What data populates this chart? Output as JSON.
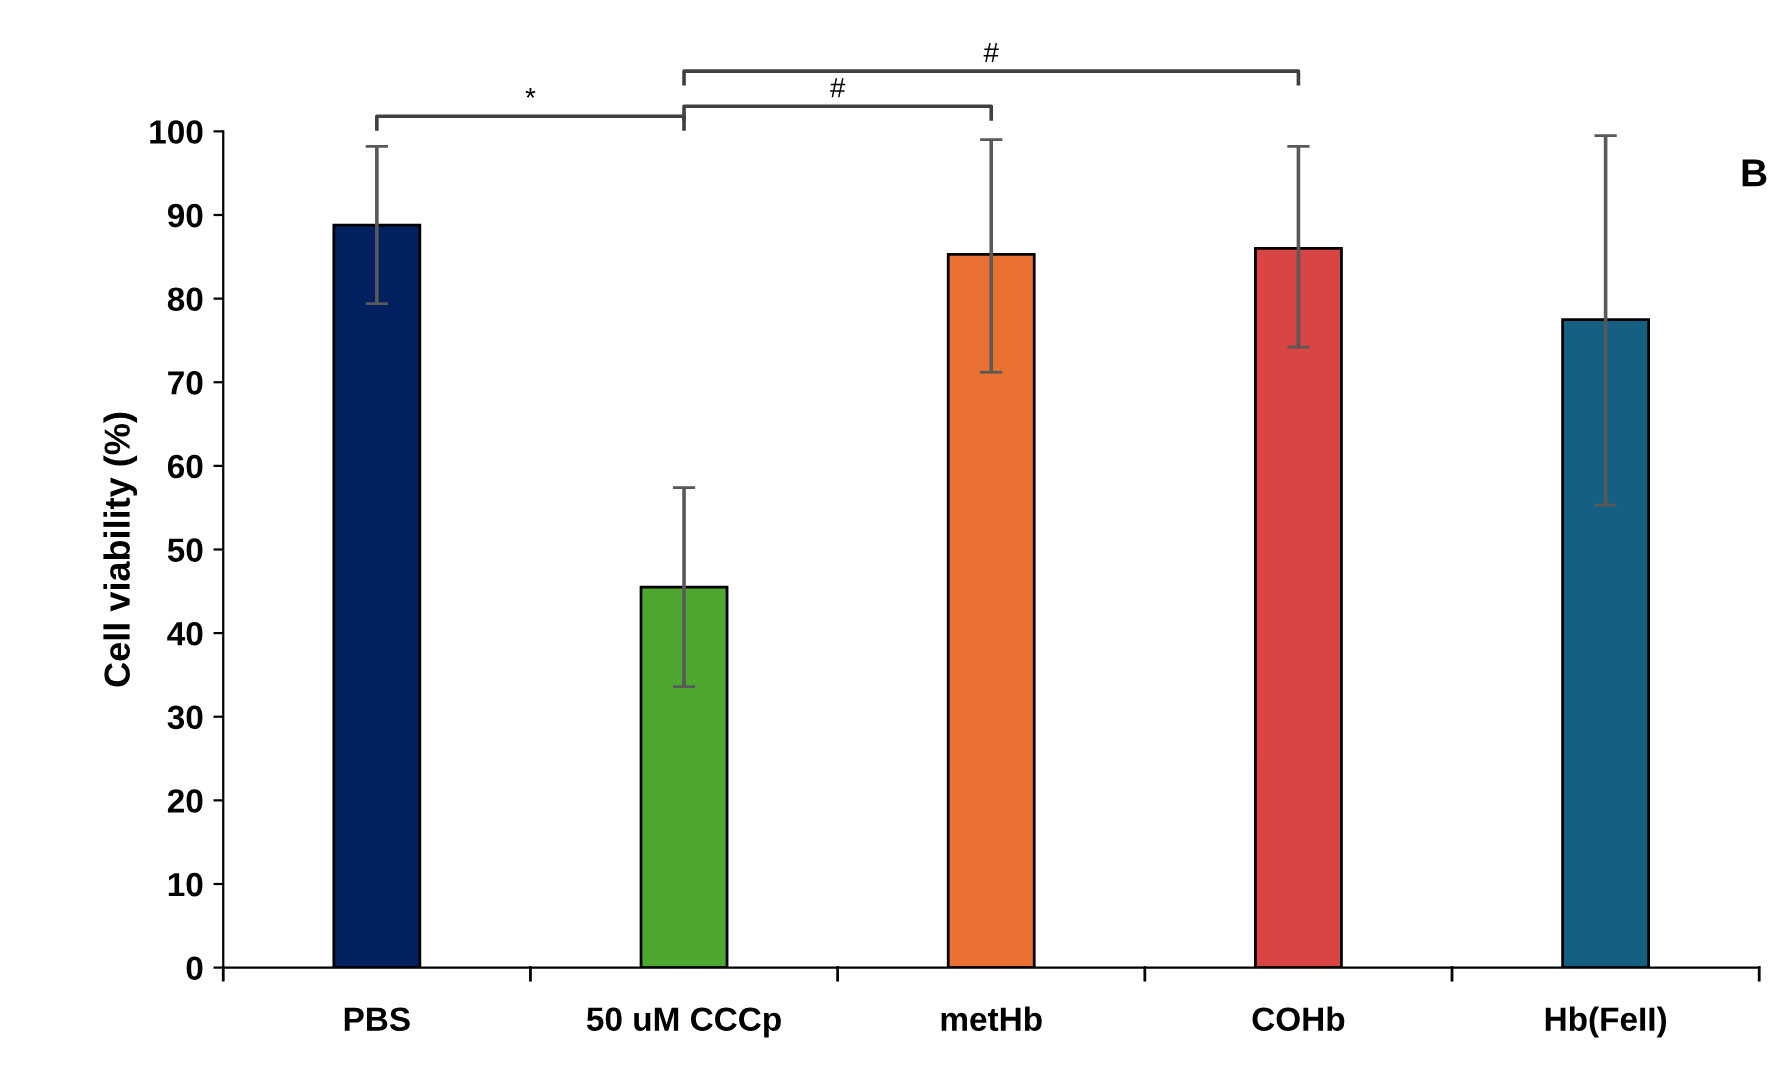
{
  "chart_data": {
    "type": "bar",
    "ylabel": "Cell viability (%)",
    "categories": [
      "PBS",
      "50 uM CCCp",
      "metHb",
      "COHb",
      "Hb(FeII)"
    ],
    "values": [
      88.8,
      45.5,
      85.3,
      86.0,
      77.5
    ],
    "colors": [
      "#002060",
      "#4ea72e",
      "#e97132",
      "#d94545",
      "#156082"
    ],
    "errors": [
      [
        79.4,
        98.2
      ],
      [
        33.6,
        57.4
      ],
      [
        71.2,
        99.0
      ],
      [
        74.2,
        98.2
      ],
      [
        55.3,
        99.5
      ]
    ],
    "ylim": [
      0,
      100
    ],
    "yticks": [
      0,
      10,
      20,
      30,
      40,
      50,
      60,
      70,
      80,
      90,
      100
    ],
    "grid": false,
    "legend": false,
    "annotations": [
      "*",
      "#",
      "#",
      "B"
    ]
  }
}
